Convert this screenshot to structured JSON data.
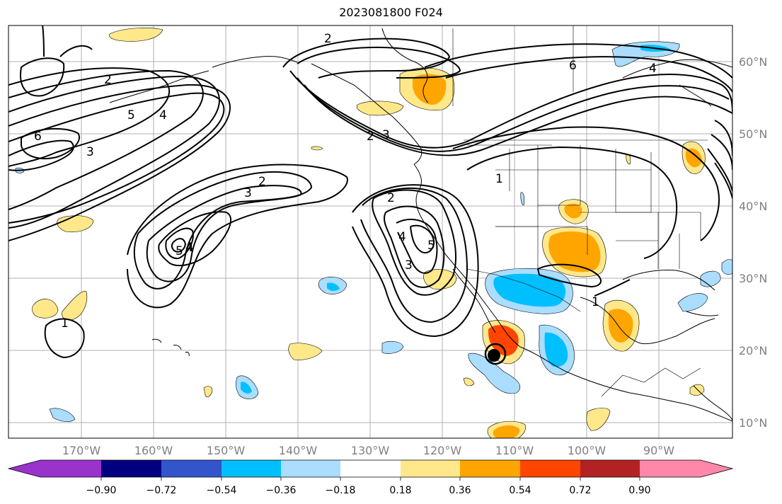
{
  "title": "2023081800 F024",
  "map": {
    "lon_labels": [
      "170°W",
      "160°W",
      "150°W",
      "140°W",
      "130°W",
      "120°W",
      "110°W",
      "100°W",
      "90°W"
    ],
    "lat_labels": [
      "60°N",
      "50°N",
      "40°N",
      "30°N",
      "20°N",
      "10°N"
    ],
    "contour_labels": [
      "2",
      "3",
      "4",
      "5",
      "6",
      "2",
      "4",
      "2",
      "3",
      "2",
      "3",
      "5",
      "4",
      "2",
      "3",
      "4",
      "5",
      "1",
      "1",
      "6",
      "4",
      "1"
    ]
  },
  "colorbar": {
    "tick_labels": [
      "−0.90",
      "−0.72",
      "−0.54",
      "−0.36",
      "−0.18",
      "0.18",
      "0.36",
      "0.54",
      "0.72",
      "0.90"
    ],
    "colors": [
      "#9933cc",
      "#000080",
      "#3355cc",
      "#00bfff",
      "#aaddff",
      "#ffffff",
      "#ffe88a",
      "#ffa500",
      "#ff4500",
      "#b22222",
      "#ff88aa"
    ]
  }
}
